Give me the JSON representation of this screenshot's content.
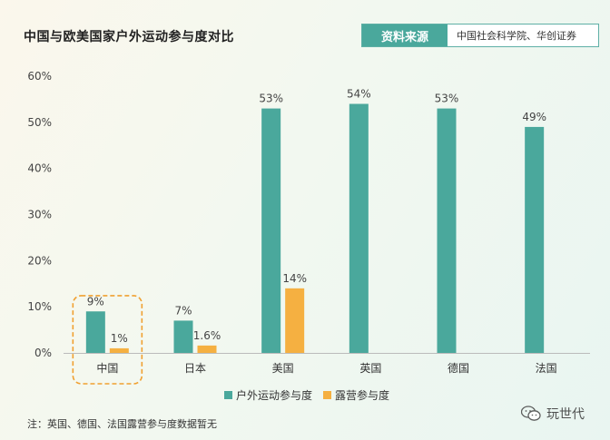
{
  "header": {
    "title": "中国与欧美国家户外运动参与度对比",
    "source_label": "资料来源",
    "source_text": "中国社会科学院、华创证券"
  },
  "chart_data": {
    "type": "bar",
    "categories": [
      "中国",
      "日本",
      "美国",
      "英国",
      "德国",
      "法国"
    ],
    "series": [
      {
        "name": "户外运动参与度",
        "values": [
          9,
          7,
          53,
          54,
          53,
          49
        ],
        "labels": [
          "9%",
          "7%",
          "53%",
          "54%",
          "53%",
          "49%"
        ],
        "color": "#4aa89c"
      },
      {
        "name": "露营参与度",
        "values": [
          1,
          1.6,
          14,
          null,
          null,
          null
        ],
        "labels": [
          "1%",
          "1.6%",
          "14%",
          "",
          "",
          ""
        ],
        "color": "#f5b041"
      }
    ],
    "yticks": [
      "0%",
      "10%",
      "20%",
      "30%",
      "40%",
      "50%",
      "60%"
    ],
    "ylim": [
      0,
      60
    ],
    "highlight_category": "中国",
    "highlight_color": "#f0a030",
    "legend_position": "bottom"
  },
  "note": "注：英国、德国、法国露营参与度数据暂无",
  "watermark": {
    "text": "玩世代",
    "icon": "wechat-icon"
  }
}
